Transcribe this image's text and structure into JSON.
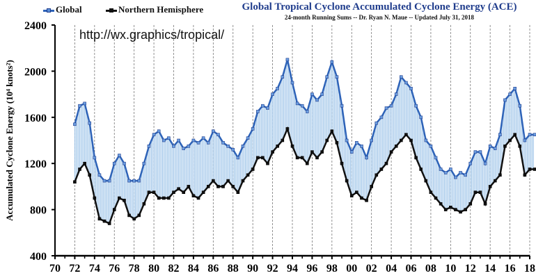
{
  "chart_data": {
    "type": "line",
    "title": "Global Tropical Cyclone Accumulated Cyclone Energy (ACE)",
    "subtitle": "24-month Running Sums -- Dr. Ryan N. Maue -- Updated July 31, 2018",
    "annotation": "http://wx.graphics/tropical/",
    "ylabel": "Accumulated Cyclone Energy (10⁴ knots²)",
    "xlabel": "",
    "ylim": [
      400,
      2400
    ],
    "xlim": [
      1970,
      2018.5
    ],
    "yticks": [
      "400",
      "800",
      "1200",
      "1600",
      "2000",
      "2400"
    ],
    "xticks": [
      "70",
      "72",
      "74",
      "76",
      "78",
      "80",
      "82",
      "84",
      "86",
      "88",
      "90",
      "92",
      "94",
      "96",
      "98",
      "00",
      "02",
      "04",
      "06",
      "08",
      "10",
      "12",
      "14",
      "16",
      "18"
    ],
    "legend": [
      "Global",
      "Northern Hemisphere"
    ],
    "legend_position": "top-left",
    "grid": "vertical dashed every 2 years",
    "x": [
      1972,
      1972.5,
      1973,
      1973.5,
      1974,
      1974.5,
      1975,
      1975.5,
      1976,
      1976.5,
      1977,
      1977.5,
      1978,
      1978.5,
      1979,
      1979.5,
      1980,
      1980.5,
      1981,
      1981.5,
      1982,
      1982.5,
      1983,
      1983.5,
      1984,
      1984.5,
      1985,
      1985.5,
      1986,
      1986.5,
      1987,
      1987.5,
      1988,
      1988.5,
      1989,
      1989.5,
      1990,
      1990.5,
      1991,
      1991.5,
      1992,
      1992.5,
      1993,
      1993.5,
      1994,
      1994.5,
      1995,
      1995.5,
      1996,
      1996.5,
      1997,
      1997.5,
      1998,
      1998.5,
      1999,
      1999.5,
      2000,
      2000.5,
      2001,
      2001.5,
      2002,
      2002.5,
      2003,
      2003.5,
      2004,
      2004.5,
      2005,
      2005.5,
      2006,
      2006.5,
      2007,
      2007.5,
      2008,
      2008.5,
      2009,
      2009.5,
      2010,
      2010.5,
      2011,
      2011.5,
      2012,
      2012.5,
      2013,
      2013.5,
      2014,
      2014.5,
      2015,
      2015.5,
      2016,
      2016.5,
      2017,
      2017.5,
      2018,
      2018.5
    ],
    "series": [
      {
        "name": "Global",
        "color": "#2e63b8",
        "values": [
          1540,
          1700,
          1720,
          1550,
          1250,
          1100,
          1050,
          1050,
          1200,
          1270,
          1200,
          1050,
          1050,
          1050,
          1200,
          1350,
          1450,
          1480,
          1400,
          1420,
          1350,
          1400,
          1330,
          1350,
          1400,
          1380,
          1420,
          1380,
          1480,
          1450,
          1380,
          1350,
          1320,
          1250,
          1350,
          1420,
          1500,
          1650,
          1700,
          1680,
          1800,
          1850,
          1950,
          2100,
          1900,
          1720,
          1700,
          1650,
          1800,
          1750,
          1800,
          1950,
          2080,
          1950,
          1700,
          1400,
          1300,
          1380,
          1350,
          1250,
          1400,
          1550,
          1600,
          1680,
          1700,
          1800,
          1950,
          1900,
          1850,
          1700,
          1600,
          1400,
          1350,
          1250,
          1150,
          1120,
          1150,
          1080,
          1120,
          1100,
          1200,
          1300,
          1300,
          1200,
          1350,
          1330,
          1450,
          1750,
          1800,
          1850,
          1700,
          1400,
          1450,
          1450
        ]
      },
      {
        "name": "Northern Hemisphere",
        "color": "#111111",
        "values": [
          1040,
          1150,
          1200,
          1100,
          900,
          720,
          700,
          680,
          800,
          900,
          880,
          750,
          720,
          750,
          850,
          950,
          950,
          900,
          900,
          900,
          950,
          980,
          950,
          1000,
          920,
          900,
          950,
          1000,
          1050,
          1000,
          1000,
          1050,
          1000,
          950,
          1050,
          1100,
          1150,
          1250,
          1250,
          1200,
          1300,
          1350,
          1400,
          1500,
          1350,
          1250,
          1250,
          1200,
          1300,
          1250,
          1300,
          1400,
          1480,
          1380,
          1200,
          1050,
          920,
          950,
          900,
          880,
          1000,
          1100,
          1150,
          1200,
          1300,
          1350,
          1400,
          1450,
          1400,
          1250,
          1150,
          1050,
          950,
          900,
          850,
          800,
          820,
          800,
          780,
          800,
          850,
          950,
          950,
          850,
          1000,
          1050,
          1100,
          1350,
          1400,
          1450,
          1350,
          1100,
          1150,
          1150
        ]
      }
    ]
  }
}
